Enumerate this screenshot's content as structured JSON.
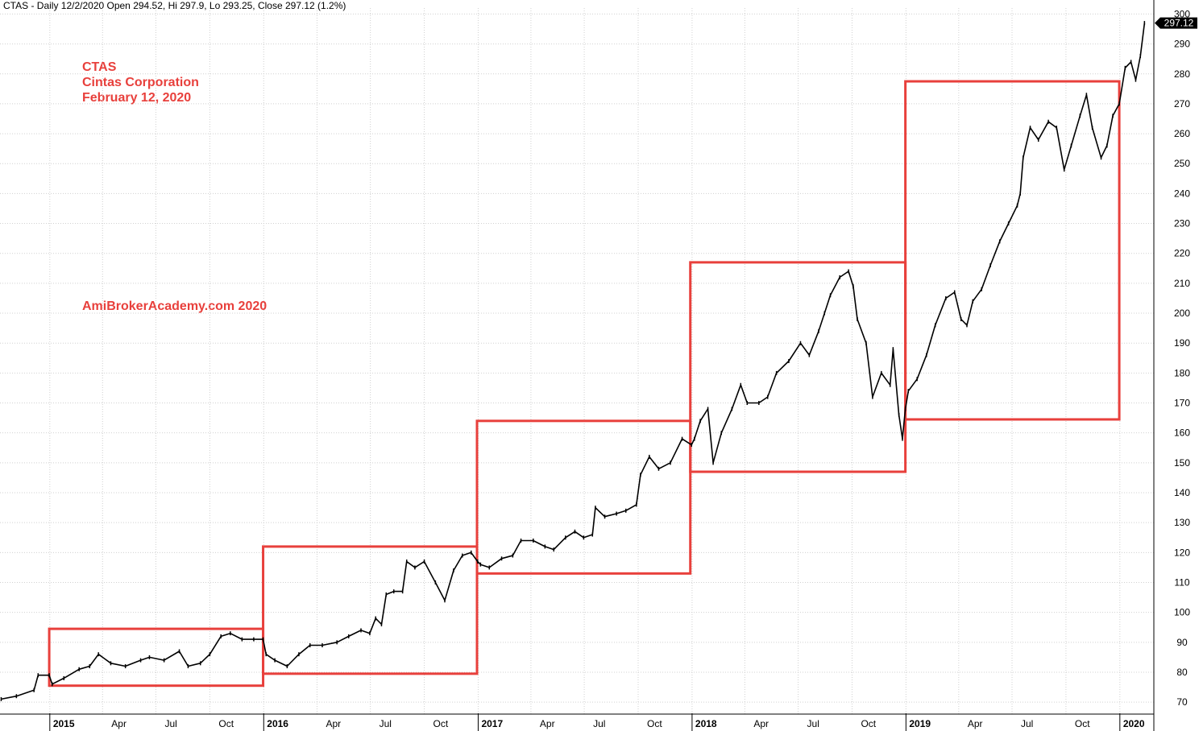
{
  "header": "CTAS - Daily 12/2/2020 Open 294.52, Hi 297.9, Lo 293.25, Close 297.12 (1.2%)",
  "annotations": {
    "line1": "CTAS",
    "line2": "Cintas Corporation",
    "line3": "February 12, 2020",
    "watermark": "AmiBrokerAcademy.com   2020"
  },
  "last_price_label": "297.12",
  "colors": {
    "price": "#000000",
    "box": "#e8403c",
    "grid": "#d0d0d0",
    "label_bg": "#000000",
    "label_fg": "#ffffff"
  },
  "chart_data": {
    "type": "line",
    "title": "",
    "ylim": [
      66,
      302
    ],
    "y_ticks": [
      70,
      80,
      90,
      100,
      110,
      120,
      130,
      140,
      150,
      160,
      170,
      180,
      190,
      200,
      210,
      220,
      230,
      240,
      250,
      260,
      270,
      280,
      290,
      300
    ],
    "x_range": [
      "2014-10-08",
      "2020-02-28"
    ],
    "x_ticks": [
      {
        "label": "2015",
        "date": "2015-01-01",
        "major": true
      },
      {
        "label": "Apr",
        "date": "2015-04-01",
        "major": false
      },
      {
        "label": "Jul",
        "date": "2015-07-01",
        "major": false
      },
      {
        "label": "Oct",
        "date": "2015-10-01",
        "major": false
      },
      {
        "label": "2016",
        "date": "2016-01-01",
        "major": true
      },
      {
        "label": "Apr",
        "date": "2016-04-01",
        "major": false
      },
      {
        "label": "Jul",
        "date": "2016-07-01",
        "major": false
      },
      {
        "label": "Oct",
        "date": "2016-10-01",
        "major": false
      },
      {
        "label": "2017",
        "date": "2017-01-01",
        "major": true
      },
      {
        "label": "Apr",
        "date": "2017-04-01",
        "major": false
      },
      {
        "label": "Jul",
        "date": "2017-07-01",
        "major": false
      },
      {
        "label": "Oct",
        "date": "2017-10-01",
        "major": false
      },
      {
        "label": "2018",
        "date": "2018-01-01",
        "major": true
      },
      {
        "label": "Apr",
        "date": "2018-04-01",
        "major": false
      },
      {
        "label": "Jul",
        "date": "2018-07-01",
        "major": false
      },
      {
        "label": "Oct",
        "date": "2018-10-01",
        "major": false
      },
      {
        "label": "2019",
        "date": "2019-01-01",
        "major": true
      },
      {
        "label": "Apr",
        "date": "2019-04-01",
        "major": false
      },
      {
        "label": "Jul",
        "date": "2019-07-01",
        "major": false
      },
      {
        "label": "Oct",
        "date": "2019-10-01",
        "major": false
      },
      {
        "label": "2020",
        "date": "2020-01-01",
        "major": true
      }
    ],
    "series": [
      {
        "points": [
          [
            "2014-10-10",
            71
          ],
          [
            "2014-11-05",
            72
          ],
          [
            "2014-12-05",
            74
          ],
          [
            "2014-12-12",
            79
          ],
          [
            "2014-12-31",
            79
          ],
          [
            "2015-01-05",
            76
          ],
          [
            "2015-01-25",
            78
          ],
          [
            "2015-02-20",
            81
          ],
          [
            "2015-03-10",
            82
          ],
          [
            "2015-03-25",
            86
          ],
          [
            "2015-04-15",
            83
          ],
          [
            "2015-05-10",
            82
          ],
          [
            "2015-06-05",
            84
          ],
          [
            "2015-06-20",
            85
          ],
          [
            "2015-07-15",
            84
          ],
          [
            "2015-08-10",
            87
          ],
          [
            "2015-08-25",
            82
          ],
          [
            "2015-09-15",
            83
          ],
          [
            "2015-10-01",
            86
          ],
          [
            "2015-10-20",
            92
          ],
          [
            "2015-11-05",
            93
          ],
          [
            "2015-11-25",
            91
          ],
          [
            "2015-12-15",
            91
          ],
          [
            "2015-12-31",
            91
          ],
          [
            "2016-01-05",
            86
          ],
          [
            "2016-01-20",
            84
          ],
          [
            "2016-02-10",
            82
          ],
          [
            "2016-03-01",
            86
          ],
          [
            "2016-03-20",
            89
          ],
          [
            "2016-04-10",
            89
          ],
          [
            "2016-05-05",
            90
          ],
          [
            "2016-05-25",
            92
          ],
          [
            "2016-06-15",
            94
          ],
          [
            "2016-06-30",
            93
          ],
          [
            "2016-07-10",
            98
          ],
          [
            "2016-07-20",
            96
          ],
          [
            "2016-07-28",
            106
          ],
          [
            "2016-08-10",
            107
          ],
          [
            "2016-08-25",
            107
          ],
          [
            "2016-09-01",
            117
          ],
          [
            "2016-09-15",
            115
          ],
          [
            "2016-10-01",
            117
          ],
          [
            "2016-10-20",
            110
          ],
          [
            "2016-11-05",
            104
          ],
          [
            "2016-11-20",
            114
          ],
          [
            "2016-12-05",
            119
          ],
          [
            "2016-12-20",
            120
          ],
          [
            "2016-12-31",
            117
          ],
          [
            "2017-01-05",
            116
          ],
          [
            "2017-01-20",
            115
          ],
          [
            "2017-02-10",
            118
          ],
          [
            "2017-03-01",
            119
          ],
          [
            "2017-03-15",
            124
          ],
          [
            "2017-04-05",
            124
          ],
          [
            "2017-04-25",
            122
          ],
          [
            "2017-05-10",
            121
          ],
          [
            "2017-05-30",
            125
          ],
          [
            "2017-06-15",
            127
          ],
          [
            "2017-06-30",
            125
          ],
          [
            "2017-07-15",
            126
          ],
          [
            "2017-07-20",
            135
          ],
          [
            "2017-08-05",
            132
          ],
          [
            "2017-08-25",
            133
          ],
          [
            "2017-09-10",
            134
          ],
          [
            "2017-09-28",
            136
          ],
          [
            "2017-10-05",
            146
          ],
          [
            "2017-10-20",
            152
          ],
          [
            "2017-11-05",
            148
          ],
          [
            "2017-11-25",
            150
          ],
          [
            "2017-12-15",
            158
          ],
          [
            "2017-12-31",
            156
          ],
          [
            "2018-01-05",
            158
          ],
          [
            "2018-01-15",
            164
          ],
          [
            "2018-01-28",
            168
          ],
          [
            "2018-02-06",
            150
          ],
          [
            "2018-02-20",
            160
          ],
          [
            "2018-03-10",
            168
          ],
          [
            "2018-03-25",
            176
          ],
          [
            "2018-04-05",
            170
          ],
          [
            "2018-04-25",
            170
          ],
          [
            "2018-05-10",
            172
          ],
          [
            "2018-05-25",
            180
          ],
          [
            "2018-06-15",
            184
          ],
          [
            "2018-07-05",
            190
          ],
          [
            "2018-07-20",
            186
          ],
          [
            "2018-08-05",
            194
          ],
          [
            "2018-08-15",
            200
          ],
          [
            "2018-08-25",
            206
          ],
          [
            "2018-09-10",
            212
          ],
          [
            "2018-09-25",
            214
          ],
          [
            "2018-10-03",
            209
          ],
          [
            "2018-10-10",
            198
          ],
          [
            "2018-10-25",
            190
          ],
          [
            "2018-11-05",
            172
          ],
          [
            "2018-11-20",
            180
          ],
          [
            "2018-12-05",
            176
          ],
          [
            "2018-12-10",
            188
          ],
          [
            "2018-12-20",
            166
          ],
          [
            "2018-12-26",
            158
          ],
          [
            "2018-12-31",
            168
          ],
          [
            "2019-01-05",
            174
          ],
          [
            "2019-01-20",
            178
          ],
          [
            "2019-02-05",
            186
          ],
          [
            "2019-02-20",
            196
          ],
          [
            "2019-03-10",
            205
          ],
          [
            "2019-03-25",
            207
          ],
          [
            "2019-04-05",
            198
          ],
          [
            "2019-04-15",
            196
          ],
          [
            "2019-04-25",
            204
          ],
          [
            "2019-05-10",
            208
          ],
          [
            "2019-05-25",
            216
          ],
          [
            "2019-06-10",
            224
          ],
          [
            "2019-06-25",
            230
          ],
          [
            "2019-07-10",
            236
          ],
          [
            "2019-07-15",
            240
          ],
          [
            "2019-07-20",
            252
          ],
          [
            "2019-08-01",
            262
          ],
          [
            "2019-08-15",
            258
          ],
          [
            "2019-09-01",
            264
          ],
          [
            "2019-09-15",
            262
          ],
          [
            "2019-09-28",
            248
          ],
          [
            "2019-10-10",
            256
          ],
          [
            "2019-10-25",
            266
          ],
          [
            "2019-11-05",
            273
          ],
          [
            "2019-11-15",
            262
          ],
          [
            "2019-11-30",
            252
          ],
          [
            "2019-12-10",
            256
          ],
          [
            "2019-12-20",
            266
          ],
          [
            "2019-12-31",
            270
          ],
          [
            "2020-01-10",
            282
          ],
          [
            "2020-01-20",
            284
          ],
          [
            "2020-01-28",
            278
          ],
          [
            "2020-02-05",
            286
          ],
          [
            "2020-02-12",
            297
          ]
        ]
      }
    ],
    "boxes": [
      {
        "start": "2014-12-31",
        "end": "2015-12-31",
        "low": 75.5,
        "high": 94.5
      },
      {
        "start": "2015-12-31",
        "end": "2016-12-30",
        "low": 79.5,
        "high": 122
      },
      {
        "start": "2016-12-30",
        "end": "2017-12-29",
        "low": 113,
        "high": 164
      },
      {
        "start": "2017-12-29",
        "end": "2018-12-31",
        "low": 147,
        "high": 217
      },
      {
        "start": "2018-12-31",
        "end": "2019-12-31",
        "low": 164.5,
        "high": 277.5
      }
    ]
  }
}
